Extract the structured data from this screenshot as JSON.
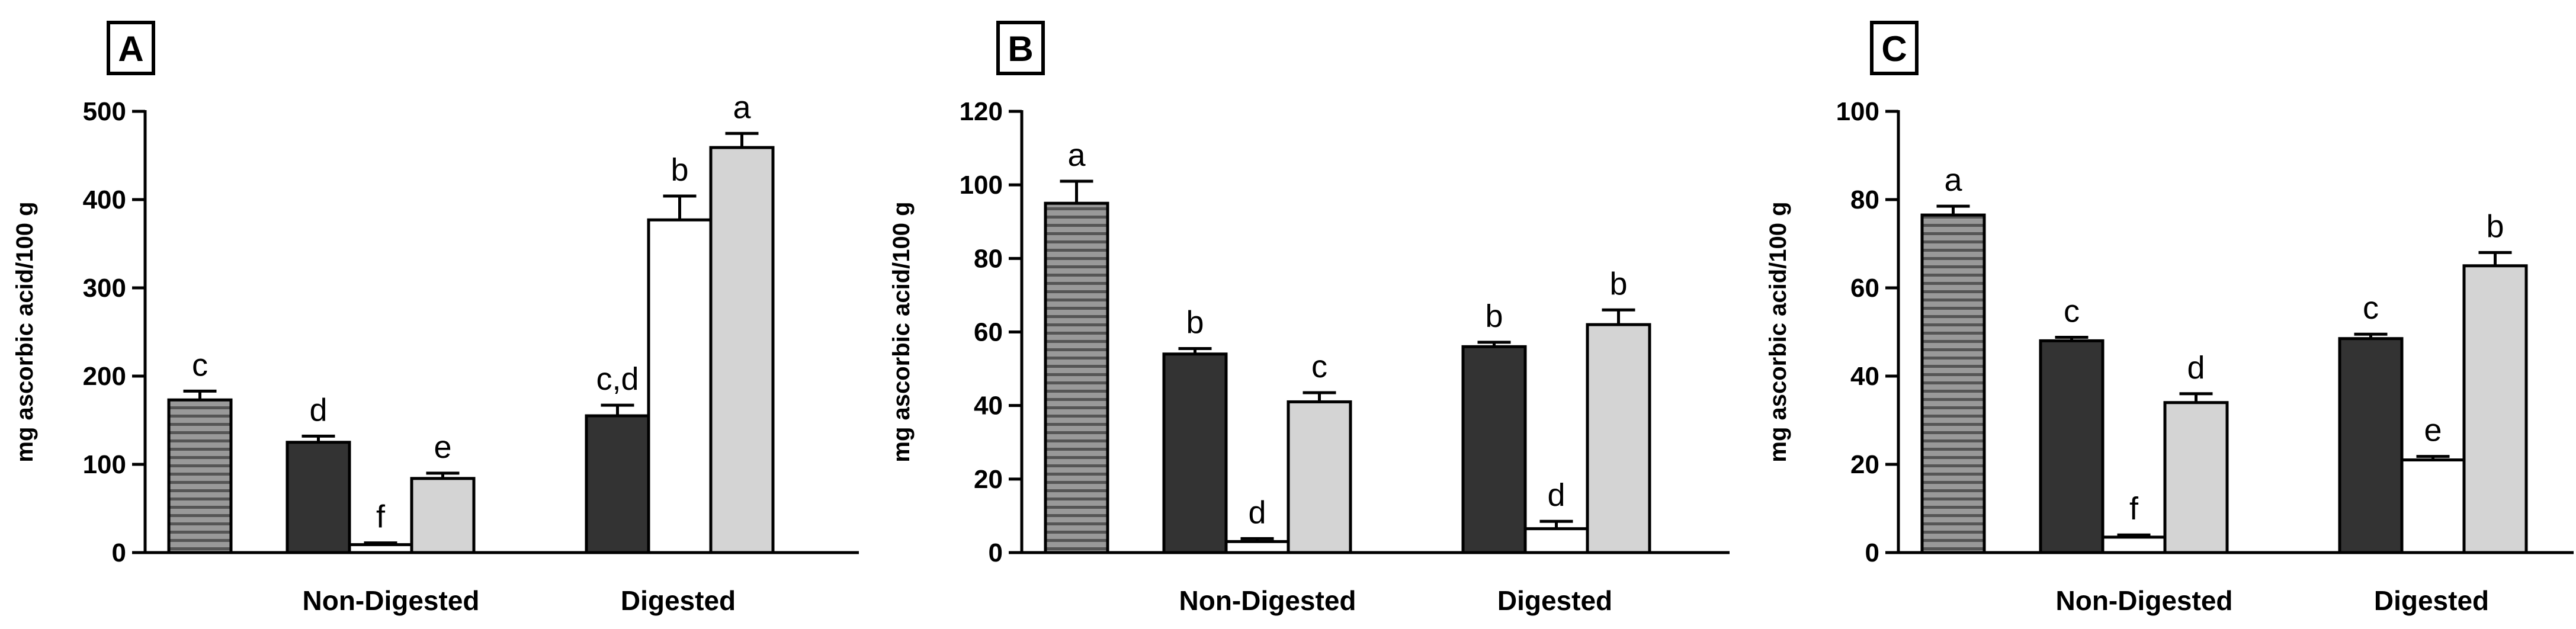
{
  "colors": {
    "dark": "#333333",
    "white": "#ffffff",
    "light": "#d4d4d4",
    "stripe_bg": "#999999",
    "stripe_line": "#555555",
    "stroke": "#000000"
  },
  "chart_data": [
    {
      "panel": "A",
      "type": "bar",
      "ylabel": "mg ascorbic acid/100 g",
      "ylim": [
        0,
        500
      ],
      "yticks": [
        0,
        100,
        200,
        300,
        400,
        500
      ],
      "groups": [
        "Non-Digested",
        "Digested"
      ],
      "bars": [
        {
          "fill": "striped",
          "value": 173,
          "error": 10,
          "letter": "c"
        },
        {
          "fill": "dark",
          "value": 125,
          "error": 7,
          "letter": "d"
        },
        {
          "fill": "white",
          "value": 9,
          "error": 2,
          "letter": "f"
        },
        {
          "fill": "light",
          "value": 84,
          "error": 6,
          "letter": "e"
        },
        {
          "fill": "dark",
          "value": 155,
          "error": 12,
          "letter": "c,d"
        },
        {
          "fill": "white",
          "value": 377,
          "error": 27,
          "letter": "b"
        },
        {
          "fill": "light",
          "value": 459,
          "error": 16,
          "letter": "a"
        }
      ]
    },
    {
      "panel": "B",
      "type": "bar",
      "ylabel": "mg ascorbic acid/100 g",
      "ylim": [
        0,
        120
      ],
      "yticks": [
        0,
        20,
        40,
        60,
        80,
        100,
        120
      ],
      "groups": [
        "Non-Digested",
        "Digested"
      ],
      "bars": [
        {
          "fill": "striped",
          "value": 95,
          "error": 6,
          "letter": "a"
        },
        {
          "fill": "dark",
          "value": 54,
          "error": 1.5,
          "letter": "b"
        },
        {
          "fill": "white",
          "value": 3,
          "error": 0.8,
          "letter": "d"
        },
        {
          "fill": "light",
          "value": 41,
          "error": 2.5,
          "letter": "c"
        },
        {
          "fill": "dark",
          "value": 56,
          "error": 1.2,
          "letter": "b"
        },
        {
          "fill": "white",
          "value": 6.5,
          "error": 2,
          "letter": "d"
        },
        {
          "fill": "light",
          "value": 62,
          "error": 4,
          "letter": "b"
        }
      ]
    },
    {
      "panel": "C",
      "type": "bar",
      "ylabel": "mg ascorbic acid/100 g",
      "ylim": [
        0,
        100
      ],
      "yticks": [
        0,
        20,
        40,
        60,
        80,
        100
      ],
      "groups": [
        "Non-Digested",
        "Digested"
      ],
      "bars": [
        {
          "fill": "striped",
          "value": 76.5,
          "error": 2,
          "letter": "a"
        },
        {
          "fill": "dark",
          "value": 48,
          "error": 0.8,
          "letter": "c"
        },
        {
          "fill": "white",
          "value": 3.5,
          "error": 0.5,
          "letter": "f"
        },
        {
          "fill": "light",
          "value": 34,
          "error": 2,
          "letter": "d"
        },
        {
          "fill": "dark",
          "value": 48.5,
          "error": 1,
          "letter": "c"
        },
        {
          "fill": "white",
          "value": 21,
          "error": 0.8,
          "letter": "e"
        },
        {
          "fill": "light",
          "value": 65,
          "error": 3,
          "letter": "b"
        }
      ]
    }
  ]
}
